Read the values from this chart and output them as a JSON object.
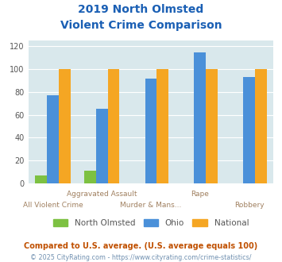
{
  "title_line1": "2019 North Olmsted",
  "title_line2": "Violent Crime Comparison",
  "categories": [
    "All Violent Crime",
    "Aggravated Assault",
    "Murder & Mans...",
    "Rape",
    "Robbery"
  ],
  "north_olmsted": [
    7,
    11,
    0,
    0,
    0
  ],
  "ohio": [
    77,
    65,
    92,
    115,
    93
  ],
  "national": [
    100,
    100,
    100,
    100,
    100
  ],
  "colors": {
    "north_olmsted": "#7dc142",
    "ohio": "#4a90d9",
    "national": "#f5a623"
  },
  "ylim": [
    0,
    125
  ],
  "yticks": [
    0,
    20,
    40,
    60,
    80,
    100,
    120
  ],
  "footnote1": "Compared to U.S. average. (U.S. average equals 100)",
  "footnote2": "© 2025 CityRating.com - https://www.cityrating.com/crime-statistics/",
  "background_color": "#d9e8ec",
  "title_color": "#1a5fb4",
  "xlabel_color": "#a08060",
  "footnote1_color": "#c05000",
  "footnote2_color": "#7090b0"
}
